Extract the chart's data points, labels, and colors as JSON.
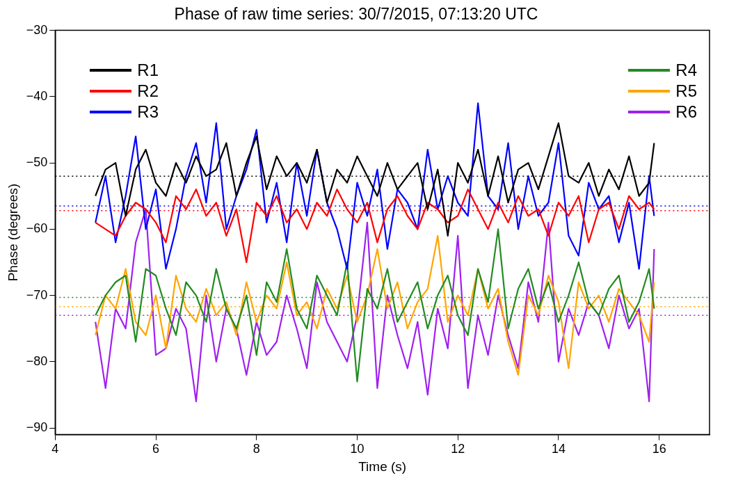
{
  "chart_data": {
    "type": "line",
    "title": "Phase of raw time series: 30/7/2015, 07:13:20 UTC",
    "xlabel": "Time (s)",
    "ylabel": "Phase (degrees)",
    "x": [
      4.8,
      5.0,
      5.2,
      5.4,
      5.6,
      5.8,
      6.0,
      6.2,
      6.4,
      6.6,
      6.8,
      7.0,
      7.2,
      7.4,
      7.6,
      7.8,
      8.0,
      8.2,
      8.4,
      8.6,
      8.8,
      9.0,
      9.2,
      9.4,
      9.6,
      9.8,
      10.0,
      10.2,
      10.4,
      10.6,
      10.8,
      11.0,
      11.2,
      11.4,
      11.6,
      11.8,
      12.0,
      12.2,
      12.4,
      12.6,
      12.8,
      13.0,
      13.2,
      13.4,
      13.6,
      13.8,
      14.0,
      14.2,
      14.4,
      14.6,
      14.8,
      15.0,
      15.2,
      15.4,
      15.6,
      15.8,
      15.9
    ],
    "xlim": [
      4,
      17
    ],
    "xticks": [
      4,
      6,
      8,
      10,
      12,
      14,
      16
    ],
    "ylim": [
      -91,
      -30
    ],
    "yticks": [
      -90,
      -80,
      -70,
      -60,
      -50,
      -40,
      -30
    ],
    "grid": false,
    "legend": "top",
    "marker": "none",
    "line_style": "solid",
    "series": [
      {
        "name": "R1",
        "color": "#000000",
        "values": [
          -55,
          -51,
          -50,
          -58,
          -51,
          -48,
          -53,
          -55,
          -50,
          -53,
          -49,
          -52,
          -51,
          -47,
          -55,
          -50,
          -46,
          -54,
          -49,
          -52,
          -50,
          -53,
          -48,
          -56,
          -51,
          -53,
          -49,
          -52,
          -55,
          -50,
          -54,
          -52,
          -50,
          -57,
          -51,
          -61,
          -50,
          -53,
          -48,
          -55,
          -49,
          -56,
          -51,
          -50,
          -54,
          -49,
          -44,
          -52,
          -53,
          -50,
          -55,
          -51,
          -54,
          -49,
          -55,
          -53,
          -47
        ]
      },
      {
        "name": "R2",
        "color": "#ff0000",
        "values": [
          -59,
          -60,
          -61,
          -58,
          -56,
          -57,
          -59,
          -62,
          -55,
          -57,
          -54,
          -58,
          -56,
          -61,
          -57,
          -65,
          -56,
          -58,
          -55,
          -59,
          -57,
          -60,
          -56,
          -58,
          -54,
          -57,
          -59,
          -56,
          -62,
          -57,
          -55,
          -58,
          -60,
          -56,
          -57,
          -59,
          -58,
          -54,
          -57,
          -60,
          -56,
          -59,
          -55,
          -58,
          -57,
          -61,
          -56,
          -58,
          -55,
          -62,
          -57,
          -56,
          -60,
          -55,
          -57,
          -56,
          -57
        ]
      },
      {
        "name": "R3",
        "color": "#0000ff",
        "values": [
          -59,
          -52,
          -62,
          -55,
          -46,
          -60,
          -54,
          -66,
          -60,
          -52,
          -47,
          -56,
          -44,
          -60,
          -55,
          -51,
          -45,
          -59,
          -53,
          -62,
          -50,
          -58,
          -48,
          -56,
          -60,
          -66,
          -53,
          -58,
          -51,
          -63,
          -54,
          -56,
          -60,
          -48,
          -57,
          -52,
          -56,
          -58,
          -41,
          -55,
          -57,
          -47,
          -60,
          -52,
          -58,
          -56,
          -47,
          -61,
          -64,
          -53,
          -57,
          -55,
          -62,
          -56,
          -66,
          -52,
          -58
        ]
      },
      {
        "name": "R4",
        "color": "#228b22",
        "values": [
          -73,
          -70,
          -68,
          -67,
          -77,
          -66,
          -67,
          -72,
          -76,
          -68,
          -70,
          -74,
          -66,
          -72,
          -75,
          -70,
          -79,
          -68,
          -71,
          -63,
          -72,
          -75,
          -67,
          -70,
          -73,
          -65,
          -83,
          -69,
          -72,
          -66,
          -74,
          -71,
          -68,
          -75,
          -70,
          -67,
          -73,
          -76,
          -66,
          -71,
          -60,
          -75,
          -69,
          -66,
          -72,
          -68,
          -74,
          -70,
          -65,
          -71,
          -73,
          -69,
          -67,
          -74,
          -71,
          -66,
          -72
        ]
      },
      {
        "name": "R5",
        "color": "#ffa500",
        "values": [
          -76,
          -70,
          -72,
          -66,
          -74,
          -76,
          -70,
          -78,
          -67,
          -72,
          -74,
          -69,
          -73,
          -71,
          -76,
          -68,
          -74,
          -70,
          -72,
          -65,
          -73,
          -71,
          -75,
          -69,
          -72,
          -67,
          -74,
          -70,
          -63,
          -72,
          -68,
          -75,
          -71,
          -69,
          -61,
          -74,
          -70,
          -73,
          -66,
          -72,
          -69,
          -77,
          -82,
          -70,
          -73,
          -67,
          -71,
          -81,
          -68,
          -72,
          -70,
          -74,
          -69,
          -71,
          -73,
          -77,
          -68
        ]
      },
      {
        "name": "R6",
        "color": "#a020f0",
        "values": [
          -74,
          -84,
          -72,
          -75,
          -62,
          -57,
          -79,
          -78,
          -72,
          -75,
          -86,
          -70,
          -80,
          -72,
          -75,
          -82,
          -74,
          -79,
          -77,
          -70,
          -75,
          -81,
          -68,
          -74,
          -77,
          -80,
          -73,
          -59,
          -84,
          -70,
          -76,
          -81,
          -74,
          -85,
          -72,
          -78,
          -61,
          -84,
          -73,
          -79,
          -70,
          -76,
          -81,
          -68,
          -74,
          -59,
          -80,
          -72,
          -76,
          -71,
          -73,
          -78,
          -70,
          -75,
          -72,
          -86,
          -63
        ]
      }
    ],
    "ref_lines": [
      {
        "axis": "y",
        "value": -52,
        "color": "#000000",
        "line_style": "dotted"
      },
      {
        "axis": "y",
        "value": -56.5,
        "color": "#0000ff",
        "line_style": "dotted"
      },
      {
        "axis": "y",
        "value": -57.2,
        "color": "#ff0000",
        "line_style": "dotted"
      },
      {
        "axis": "y",
        "value": -70.3,
        "color": "#228b22",
        "line_style": "dotted"
      },
      {
        "axis": "y",
        "value": -71.7,
        "color": "#ffa500",
        "line_style": "dotted"
      },
      {
        "axis": "y",
        "value": -73,
        "color": "#a020f0",
        "line_style": "dotted"
      }
    ]
  }
}
